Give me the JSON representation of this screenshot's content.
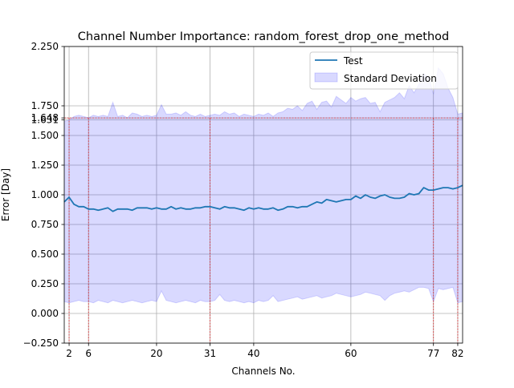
{
  "chart_data": {
    "type": "line",
    "title": "Channel Number Importance: random_forest_drop_one_method",
    "xlabel": "Channels No.",
    "ylabel": "Error [Day]",
    "xlim": [
      1,
      83
    ],
    "ylim": [
      -0.25,
      2.25
    ],
    "x_ticks": [
      2,
      6,
      20,
      31,
      40,
      60,
      77,
      82
    ],
    "y_ticks": [
      -0.25,
      0.0,
      0.25,
      0.5,
      0.75,
      1.0,
      1.25,
      1.5,
      1.631,
      1.648,
      1.75,
      2.25
    ],
    "y_tick_labels": [
      "−0.250",
      "0.000",
      "0.250",
      "0.500",
      "0.750",
      "1.000",
      "1.250",
      "1.500",
      "1.631",
      "1.648",
      "1.750",
      "2.250"
    ],
    "grid": true,
    "legend_position": "top-right",
    "reference_y": 1.648,
    "reference_color": "#d62728",
    "series": [
      {
        "name": "Test",
        "color": "#1f77b4",
        "x": [
          1,
          2,
          3,
          4,
          5,
          6,
          7,
          8,
          9,
          10,
          11,
          12,
          13,
          14,
          15,
          16,
          17,
          18,
          19,
          20,
          21,
          22,
          23,
          24,
          25,
          26,
          27,
          28,
          29,
          30,
          31,
          32,
          33,
          34,
          35,
          36,
          37,
          38,
          39,
          40,
          41,
          42,
          43,
          44,
          45,
          46,
          47,
          48,
          49,
          50,
          51,
          52,
          53,
          54,
          55,
          56,
          57,
          58,
          59,
          60,
          61,
          62,
          63,
          64,
          65,
          66,
          67,
          68,
          69,
          70,
          71,
          72,
          73,
          74,
          75,
          76,
          77,
          78,
          79,
          80,
          81,
          82,
          83
        ],
        "y": [
          0.94,
          0.98,
          0.92,
          0.9,
          0.9,
          0.88,
          0.88,
          0.87,
          0.88,
          0.89,
          0.86,
          0.88,
          0.88,
          0.88,
          0.87,
          0.89,
          0.89,
          0.89,
          0.88,
          0.89,
          0.88,
          0.88,
          0.9,
          0.88,
          0.89,
          0.88,
          0.88,
          0.89,
          0.89,
          0.9,
          0.9,
          0.89,
          0.88,
          0.9,
          0.89,
          0.89,
          0.88,
          0.87,
          0.89,
          0.88,
          0.89,
          0.88,
          0.88,
          0.89,
          0.87,
          0.88,
          0.9,
          0.9,
          0.89,
          0.9,
          0.9,
          0.92,
          0.94,
          0.93,
          0.96,
          0.95,
          0.94,
          0.95,
          0.96,
          0.96,
          0.99,
          0.97,
          1.0,
          0.98,
          0.97,
          0.99,
          1.0,
          0.98,
          0.97,
          0.97,
          0.98,
          1.01,
          1.0,
          1.01,
          1.06,
          1.04,
          1.04,
          1.05,
          1.06,
          1.06,
          1.05,
          1.06,
          1.08
        ]
      },
      {
        "name": "Standard Deviation",
        "type": "area",
        "color": "#0000ff",
        "opacity": 0.15,
        "x": [
          1,
          2,
          3,
          4,
          5,
          6,
          7,
          8,
          9,
          10,
          11,
          12,
          13,
          14,
          15,
          16,
          17,
          18,
          19,
          20,
          21,
          22,
          23,
          24,
          25,
          26,
          27,
          28,
          29,
          30,
          31,
          32,
          33,
          34,
          35,
          36,
          37,
          38,
          39,
          40,
          41,
          42,
          43,
          44,
          45,
          46,
          47,
          48,
          49,
          50,
          51,
          52,
          53,
          54,
          55,
          56,
          57,
          58,
          59,
          60,
          61,
          62,
          63,
          64,
          65,
          66,
          67,
          68,
          69,
          70,
          71,
          72,
          73,
          74,
          75,
          76,
          77,
          78,
          79,
          80,
          81,
          82,
          83
        ],
        "lower": [
          0.1,
          0.09,
          0.1,
          0.11,
          0.1,
          0.1,
          0.09,
          0.11,
          0.1,
          0.09,
          0.11,
          0.1,
          0.09,
          0.1,
          0.11,
          0.1,
          0.09,
          0.1,
          0.11,
          0.1,
          0.19,
          0.11,
          0.1,
          0.09,
          0.1,
          0.11,
          0.1,
          0.09,
          0.11,
          0.1,
          0.1,
          0.11,
          0.16,
          0.11,
          0.1,
          0.11,
          0.1,
          0.09,
          0.1,
          0.09,
          0.11,
          0.1,
          0.11,
          0.15,
          0.1,
          0.11,
          0.12,
          0.13,
          0.14,
          0.12,
          0.13,
          0.14,
          0.15,
          0.13,
          0.14,
          0.15,
          0.17,
          0.16,
          0.15,
          0.14,
          0.15,
          0.16,
          0.18,
          0.17,
          0.16,
          0.15,
          0.11,
          0.15,
          0.17,
          0.18,
          0.19,
          0.18,
          0.2,
          0.22,
          0.22,
          0.21,
          0.1,
          0.21,
          0.2,
          0.21,
          0.22,
          0.09,
          0.1
        ],
        "upper": [
          1.62,
          1.63,
          1.66,
          1.67,
          1.66,
          1.65,
          1.67,
          1.66,
          1.67,
          1.66,
          1.78,
          1.66,
          1.67,
          1.65,
          1.69,
          1.68,
          1.66,
          1.67,
          1.66,
          1.67,
          1.76,
          1.68,
          1.68,
          1.69,
          1.67,
          1.7,
          1.67,
          1.66,
          1.68,
          1.66,
          1.67,
          1.68,
          1.67,
          1.7,
          1.68,
          1.69,
          1.66,
          1.68,
          1.67,
          1.66,
          1.68,
          1.67,
          1.69,
          1.66,
          1.69,
          1.7,
          1.73,
          1.72,
          1.75,
          1.71,
          1.77,
          1.79,
          1.72,
          1.78,
          1.79,
          1.74,
          1.83,
          1.8,
          1.77,
          1.82,
          1.79,
          1.81,
          1.82,
          1.77,
          1.78,
          1.7,
          1.78,
          1.8,
          1.82,
          1.86,
          1.81,
          1.92,
          1.86,
          1.93,
          2.02,
          1.99,
          1.85,
          2.07,
          2.02,
          1.9,
          1.82,
          1.68,
          1.69
        ]
      }
    ],
    "highlighted_channels": [
      2,
      6,
      31,
      77,
      82
    ]
  }
}
